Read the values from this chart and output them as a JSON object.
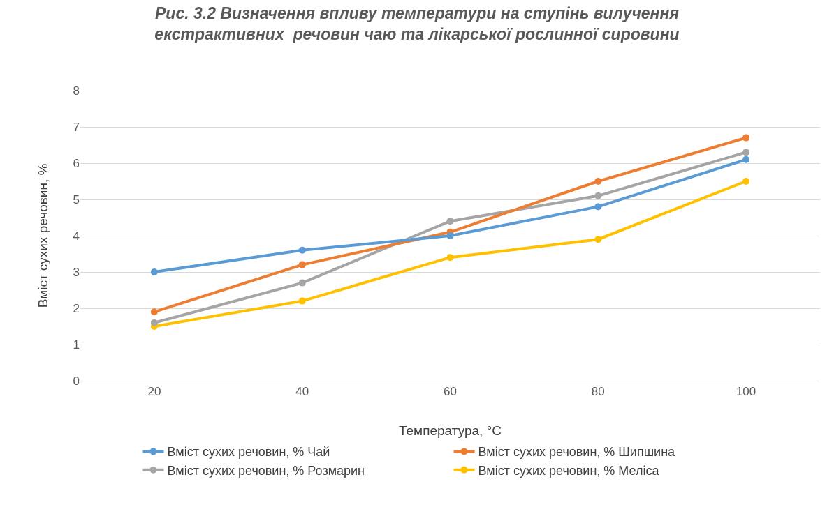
{
  "chart_data": {
    "type": "line",
    "title": "Рис. 3.2 Визначення впливу температури на ступінь вилучення\nекстрактивних  речовин чаю та лікарської рослинної сировини",
    "xlabel": "Температура, °C",
    "ylabel": "Вміст сухих речовин, %",
    "categories": [
      "20",
      "40",
      "60",
      "80",
      "100"
    ],
    "series": [
      {
        "name": "Вміст сухих речовин, % Чай",
        "color": "#5b9bd5",
        "values": [
          3.0,
          3.6,
          4.0,
          4.8,
          6.1
        ]
      },
      {
        "name": "Вміст сухих речовин, % Шипшина",
        "color": "#ed7d31",
        "values": [
          1.9,
          3.2,
          4.1,
          5.5,
          6.7
        ]
      },
      {
        "name": "Вміст сухих речовин, % Розмарин",
        "color": "#a5a5a5",
        "values": [
          1.6,
          2.7,
          4.4,
          5.1,
          6.3
        ]
      },
      {
        "name": "Вміст сухих речовин, % Меліса",
        "color": "#ffc000",
        "values": [
          1.5,
          2.2,
          3.4,
          3.9,
          5.5
        ]
      }
    ],
    "ylim": [
      0,
      8
    ],
    "yticks": [
      0,
      1,
      2,
      3,
      4,
      5,
      6,
      7,
      8
    ],
    "grid": "y",
    "legend": "bottom",
    "marker": "circle",
    "line_style": "solid"
  }
}
